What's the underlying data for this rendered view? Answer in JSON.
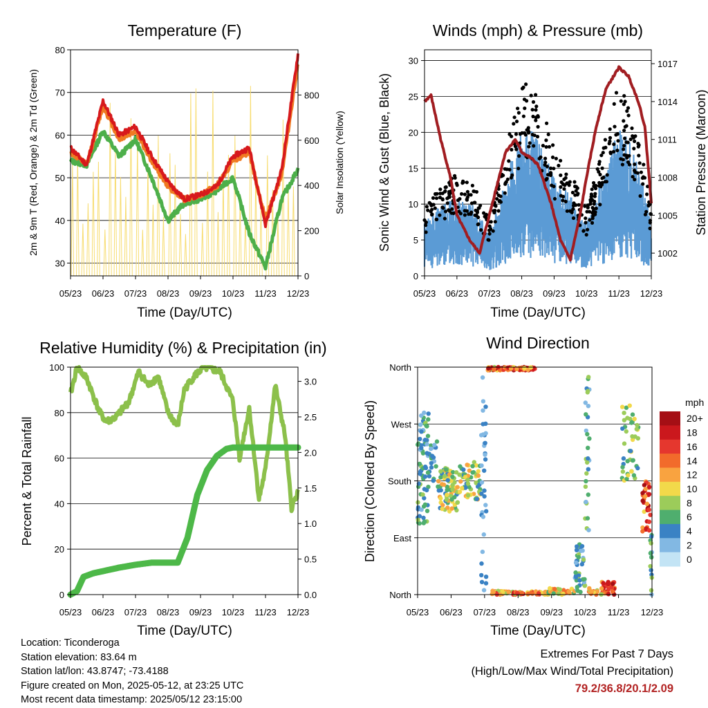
{
  "chart_data": [
    {
      "type": "line",
      "title": "Temperature (F)",
      "xlabel": "Time (Day/UTC)",
      "ylabel": "2m & 9m T (Red, Orange) & 2m Td (Green)",
      "y2label": "Solar Insolation (Yellow)",
      "x_ticks": [
        "05/23",
        "06/23",
        "07/23",
        "08/23",
        "09/23",
        "10/23",
        "11/23",
        "12/23"
      ],
      "ylim": [
        27,
        80
      ],
      "y2lim": [
        0,
        1000
      ],
      "y_ticks": [
        30,
        40,
        50,
        60,
        70,
        80
      ],
      "y2_ticks": [
        0,
        200,
        400,
        600,
        800
      ],
      "x_positions": [
        0,
        0.5,
        1,
        1.5,
        2,
        2.5,
        3,
        3.5,
        4,
        4.5,
        5,
        5.5,
        6,
        6.5,
        7
      ],
      "series": [
        {
          "name": "2m T",
          "color": "#d7191c",
          "values": [
            57,
            53,
            68,
            60,
            62,
            55,
            49,
            45,
            46,
            48,
            55,
            57,
            39,
            52,
            79
          ]
        },
        {
          "name": "9m T",
          "color": "#f07a22",
          "values": [
            56,
            53,
            67,
            59,
            61,
            54,
            48,
            45,
            46,
            48,
            54,
            56,
            40,
            51,
            77
          ]
        },
        {
          "name": "2m Td",
          "color": "#4daf4a",
          "values": [
            54,
            53,
            61,
            55,
            59,
            50,
            40,
            44,
            45,
            47,
            50,
            37,
            29,
            45,
            52
          ]
        }
      ],
      "insolation_series": {
        "name": "Solar Insolation",
        "color": "#f7dc6f"
      },
      "grid": true
    },
    {
      "type": "scatter",
      "title": "Winds (mph) & Pressure (mb)",
      "xlabel": "Time (Day/UTC)",
      "ylabel": "Sonic Wind & Gust (Blue, Black)",
      "y2label": "Station Pressure (Maroon)",
      "x_ticks": [
        "05/23",
        "06/23",
        "07/23",
        "08/23",
        "09/23",
        "10/23",
        "11/23",
        "12/23"
      ],
      "ylim": [
        0,
        31.5
      ],
      "y_ticks": [
        0,
        5,
        10,
        15,
        20,
        25,
        30
      ],
      "y2_ticks": [
        1002,
        1005,
        1008,
        1011,
        1014,
        1017
      ],
      "y2lim": [
        1000.2,
        1018.1
      ],
      "pressure": {
        "x": [
          0,
          0.2,
          0.5,
          0.8,
          1.0,
          1.4,
          1.7,
          2.0,
          2.3,
          2.5,
          2.8,
          3.0,
          3.3,
          3.5,
          3.9,
          4.2,
          4.5,
          4.8,
          5.0,
          5.3,
          5.6,
          6.0,
          6.3,
          6.6,
          6.8,
          7.0
        ],
        "values": [
          1014,
          1014.5,
          1011,
          1008,
          1005,
          1003,
          1002,
          1005,
          1008,
          1010,
          1011,
          1010,
          1009.5,
          1009,
          1006,
          1003,
          1001.5,
          1005,
          1008,
          1012,
          1015,
          1016.7,
          1016,
          1014,
          1012,
          1006
        ]
      },
      "wind_color": "#5b9bd5",
      "gust_color": "#000000",
      "pressure_color": "#a11d21"
    },
    {
      "type": "line",
      "title": "Relative Humidity (%) & Precipitation (in)",
      "xlabel": "Time (Day/UTC)",
      "ylabel": "Percent & Total Rainfall",
      "x_ticks": [
        "05/23",
        "06/23",
        "07/23",
        "08/23",
        "09/23",
        "10/23",
        "11/23",
        "12/23"
      ],
      "ylim": [
        0,
        100
      ],
      "y_ticks": [
        0,
        20,
        40,
        60,
        80,
        100
      ],
      "y2lim": [
        0,
        3.2
      ],
      "y2_ticks": [
        "0.0",
        "0.5",
        "1.0",
        "1.5",
        "2.0",
        "2.5",
        "3.0"
      ],
      "series": [
        {
          "name": "Relative Humidity",
          "color": "#8cc04b",
          "x": [
            0,
            0.2,
            0.5,
            0.9,
            1.1,
            1.4,
            1.8,
            2.1,
            2.4,
            2.7,
            3.0,
            3.3,
            3.5,
            3.8,
            4.1,
            4.6,
            5.0,
            5.2,
            5.5,
            5.8,
            6.0,
            6.3,
            6.6,
            6.8,
            7.0
          ],
          "values": [
            88,
            100,
            95,
            80,
            76,
            78,
            85,
            98,
            92,
            96,
            80,
            74,
            90,
            96,
            100,
            98,
            85,
            60,
            82,
            42,
            55,
            92,
            70,
            38,
            45
          ]
        },
        {
          "name": "Total Precipitation",
          "color": "#4db848",
          "x": [
            0,
            0.2,
            0.4,
            0.7,
            1.0,
            1.5,
            2.0,
            2.5,
            3.0,
            3.3,
            3.6,
            3.9,
            4.2,
            4.5,
            4.8,
            5.0,
            7.0
          ],
          "values": [
            0,
            0.05,
            0.25,
            0.3,
            0.33,
            0.38,
            0.42,
            0.45,
            0.45,
            0.45,
            0.8,
            1.4,
            1.75,
            1.95,
            2.05,
            2.07,
            2.07
          ]
        }
      ]
    },
    {
      "type": "scatter",
      "title": "Wind Direction",
      "xlabel": "Time (Day/UTC)",
      "ylabel": "Direction (Colored By Speed)",
      "x_ticks": [
        "05/23",
        "06/23",
        "07/23",
        "08/23",
        "09/23",
        "10/23",
        "11/23",
        "12/23"
      ],
      "y_ticks": [
        "North",
        "East",
        "South",
        "West",
        "North"
      ],
      "colorbar": {
        "unit": "mph",
        "labels": [
          "20+",
          "18",
          "16",
          "14",
          "12",
          "10",
          "8",
          "6",
          "4",
          "2",
          "0"
        ],
        "colors": [
          "#a50f15",
          "#cb181d",
          "#e5372e",
          "#f26b2b",
          "#f9a340",
          "#f2d94a",
          "#9ccc5a",
          "#4fae6e",
          "#3a82c4",
          "#82b8e3",
          "#c3e4f5"
        ]
      }
    }
  ],
  "station": {
    "location": "Location: Ticonderoga",
    "elevation": "Station elevation: 83.64 m",
    "latlon": "Station lat/lon: 43.8747; -73.4188",
    "created": "Figure created on Mon, 2025-05-12, at 23:25 UTC",
    "latest": "Most recent data timestamp: 2025/05/12 23:15:00"
  },
  "extremes": {
    "title": "Extremes For Past 7 Days",
    "subtitle": "(High/Low/Max Wind/Total Precipitation)",
    "values": "79.2/36.8/20.1/2.09"
  }
}
